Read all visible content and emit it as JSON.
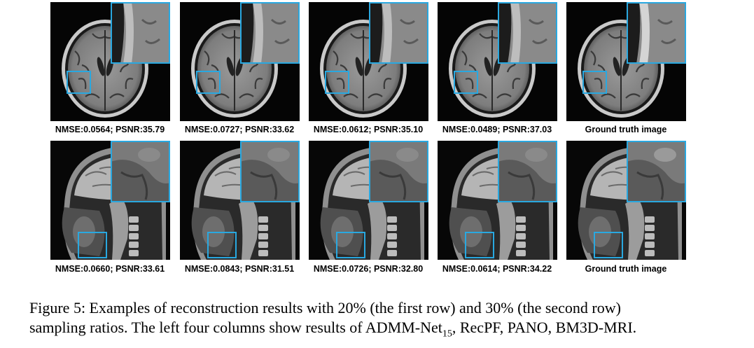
{
  "rows": [
    {
      "type": "axial",
      "panels": [
        {
          "nmse": "0.0564",
          "psnr": "35.79",
          "label": "NMSE:0.0564; PSNR:35.79"
        },
        {
          "nmse": "0.0727",
          "psnr": "33.62",
          "label": "NMSE:0.0727; PSNR:33.62"
        },
        {
          "nmse": "0.0612",
          "psnr": "35.10",
          "label": "NMSE:0.0612; PSNR:35.10"
        },
        {
          "nmse": "0.0489",
          "psnr": "37.03",
          "label": "NMSE:0.0489; PSNR:37.03"
        },
        {
          "label": "Ground truth image"
        }
      ]
    },
    {
      "type": "sagittal",
      "panels": [
        {
          "nmse": "0.0660",
          "psnr": "33.61",
          "label": "NMSE:0.0660; PSNR:33.61"
        },
        {
          "nmse": "0.0843",
          "psnr": "31.51",
          "label": "NMSE:0.0843; PSNR:31.51"
        },
        {
          "nmse": "0.0726",
          "psnr": "32.80",
          "label": "NMSE:0.0726; PSNR:32.80"
        },
        {
          "nmse": "0.0614",
          "psnr": "34.22",
          "label": "NMSE:0.0614; PSNR:34.22"
        },
        {
          "label": "Ground truth image"
        }
      ]
    }
  ],
  "figure_caption": {
    "line1": "Figure 5: Examples of reconstruction results with 20% (the first row) and 30% (the second row)",
    "line2_prefix": "sampling ratios. The left four columns show results of ADMM-Net",
    "line2_sub": "15",
    "line2_suffix": ", RecPF, PANO, BM3D-MRI."
  },
  "colors": {
    "zoom_box": "#29a8e0"
  }
}
